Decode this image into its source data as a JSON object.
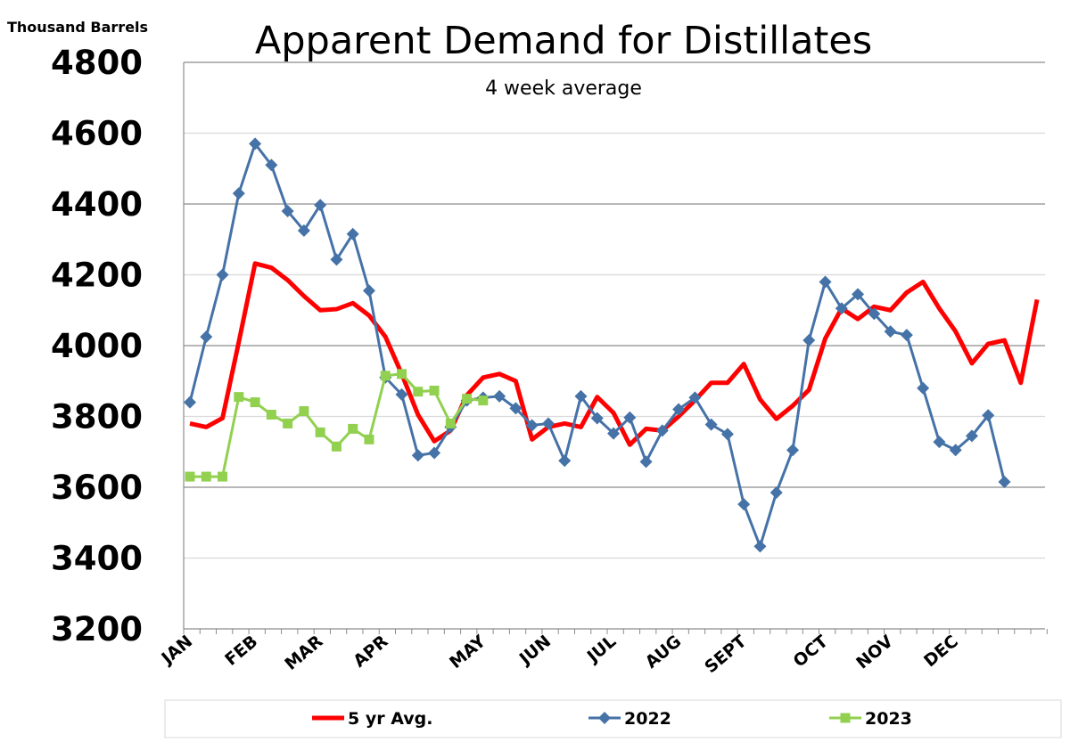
{
  "chart_data": {
    "type": "line",
    "title": "Apparent Demand for Distillates",
    "subtitle": "4 week average",
    "ylabel": "Thousand Barrels",
    "ylim": [
      3200,
      4800
    ],
    "yticks": [
      3200,
      3400,
      3600,
      3800,
      4000,
      4200,
      4400,
      4600,
      4800
    ],
    "grid": true,
    "legend_position": "bottom",
    "month_ticks": [
      {
        "label": "JAN",
        "week": 0
      },
      {
        "label": "FEB",
        "week": 4
      },
      {
        "label": "MAR",
        "week": 8
      },
      {
        "label": "APR",
        "week": 12
      },
      {
        "label": "MAY",
        "week": 18
      },
      {
        "label": "JUN",
        "week": 22
      },
      {
        "label": "JUL",
        "week": 26
      },
      {
        "label": "AUG",
        "week": 30
      },
      {
        "label": "SEPT",
        "week": 34
      },
      {
        "label": "OCT",
        "week": 39
      },
      {
        "label": "NOV",
        "week": 43
      },
      {
        "label": "DEC",
        "week": 47
      }
    ],
    "series": [
      {
        "name": "5 yr Avg.",
        "color": "#ff0000",
        "marker": "none",
        "values": [
          3780,
          3770,
          3795,
          4010,
          4232,
          4220,
          4185,
          4140,
          4100,
          4103,
          4120,
          4085,
          4025,
          3920,
          3805,
          3730,
          3760,
          3860,
          3910,
          3920,
          3900,
          3735,
          3770,
          3780,
          3770,
          3855,
          3810,
          3720,
          3765,
          3760,
          3800,
          3845,
          3895,
          3895,
          3948,
          3848,
          3793,
          3830,
          3875,
          4020,
          4105,
          4075,
          4110,
          4100,
          4150,
          4180,
          4105,
          4040,
          3950,
          4005,
          4015,
          3895,
          4130
        ]
      },
      {
        "name": "2022",
        "color": "#4572a7",
        "marker": "diamond",
        "values": [
          3840,
          4025,
          4200,
          4430,
          4570,
          4510,
          4380,
          4325,
          4397,
          4243,
          4315,
          4155,
          3910,
          3862,
          3690,
          3697,
          3770,
          3845,
          3853,
          3857,
          3823,
          3775,
          3780,
          3675,
          3857,
          3795,
          3752,
          3797,
          3672,
          3760,
          3820,
          3853,
          3777,
          3750,
          3552,
          3433,
          3585,
          3705,
          4015,
          4180,
          4105,
          4145,
          4090,
          4040,
          4030,
          3880,
          3728,
          3705,
          3745,
          3803,
          3615
        ]
      },
      {
        "name": "2023",
        "color": "#92d050",
        "marker": "square",
        "values": [
          3630,
          3630,
          3630,
          3855,
          3840,
          3805,
          3780,
          3815,
          3755,
          3715,
          3765,
          3735,
          3915,
          3920,
          3870,
          3873,
          3780,
          3850,
          3845
        ]
      }
    ]
  }
}
